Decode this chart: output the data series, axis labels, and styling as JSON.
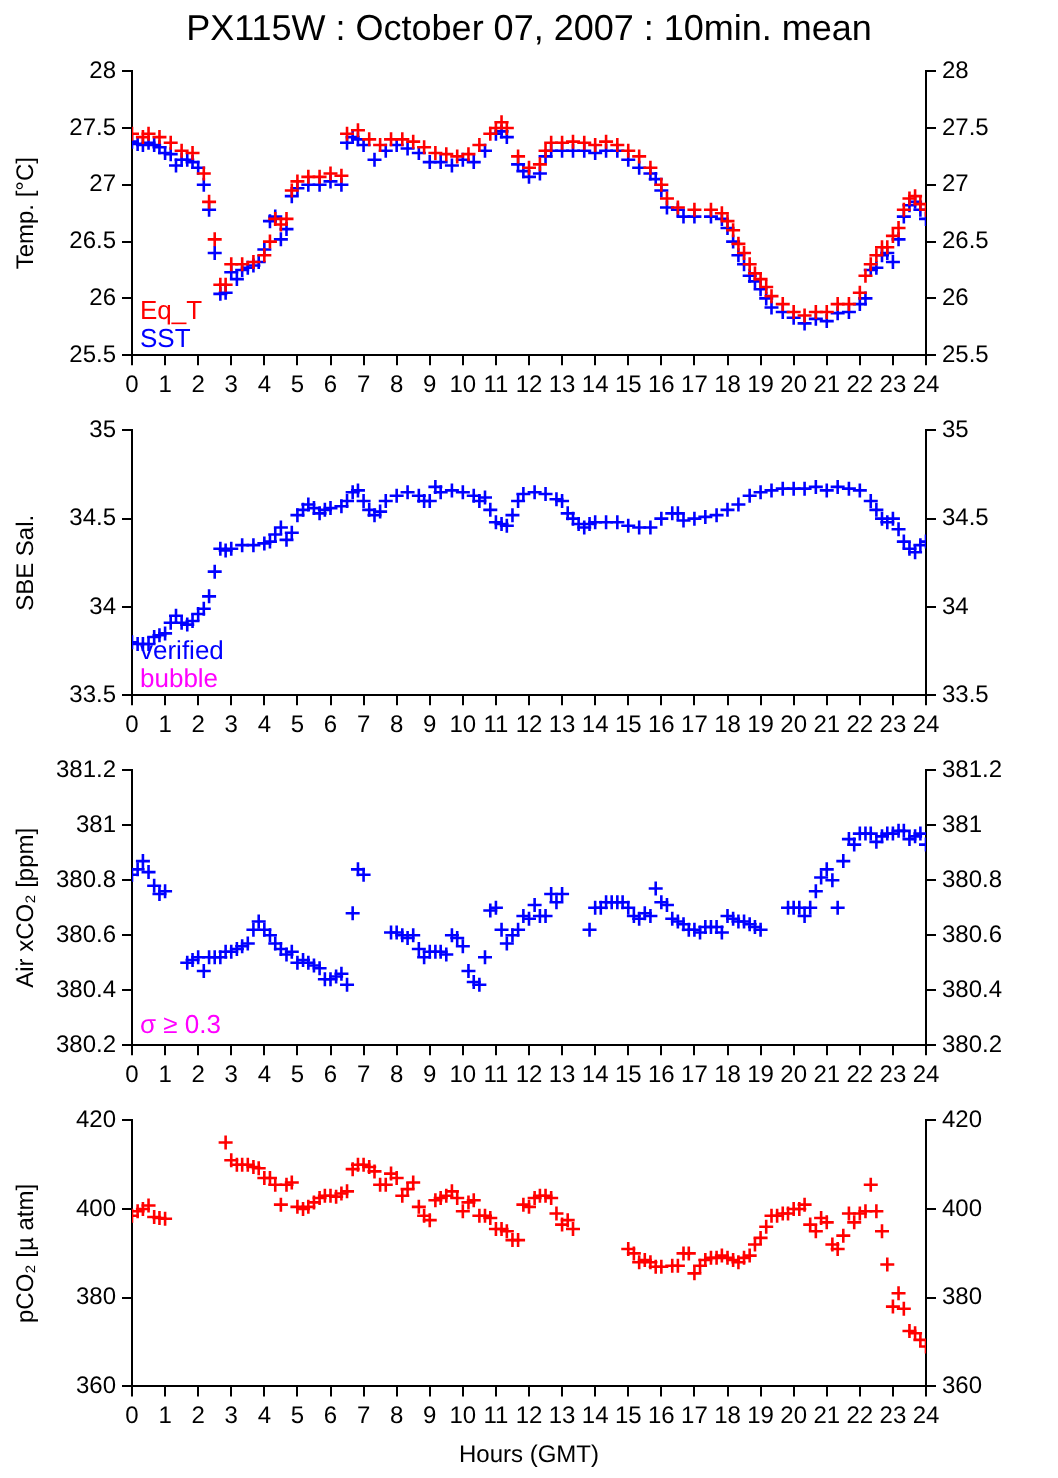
{
  "chart_data": [
    {
      "type": "scatter",
      "title": "PX115W : October 07, 2007 : 10min. mean",
      "ylabel": "Temp. [°C]",
      "xlim": [
        0,
        24
      ],
      "xticks": [
        0,
        1,
        2,
        3,
        4,
        5,
        6,
        7,
        8,
        9,
        10,
        11,
        12,
        13,
        14,
        15,
        16,
        17,
        18,
        19,
        20,
        21,
        22,
        23,
        24
      ],
      "ylim": [
        25.5,
        28
      ],
      "yticks": [
        25.5,
        26,
        26.5,
        27,
        27.5,
        28
      ],
      "y2lim": [
        25.5,
        28
      ],
      "y2ticks": [
        25.5,
        26,
        26.5,
        27,
        27.5,
        28
      ],
      "marker": "cross",
      "legend": "bottom left",
      "series": [
        {
          "name": "Eq_T",
          "color": "#ff0000",
          "x": [
            0,
            0.33,
            0.5,
            0.83,
            1.17,
            1.5,
            1.83,
            2.17,
            2.33,
            2.5,
            2.67,
            2.83,
            3,
            3.33,
            3.67,
            4,
            4.17,
            4.33,
            4.5,
            4.67,
            4.83,
            5,
            5.33,
            5.67,
            6,
            6.33,
            6.5,
            6.83,
            7.17,
            7.5,
            7.83,
            8.17,
            8.5,
            8.83,
            9.17,
            9.5,
            9.83,
            10.17,
            10.5,
            10.83,
            11,
            11.17,
            11.33,
            11.67,
            12,
            12.33,
            12.5,
            12.67,
            13,
            13.33,
            13.67,
            14,
            14.33,
            14.67,
            15,
            15.33,
            15.67,
            16,
            16.17,
            16.5,
            17,
            17.5,
            17.83,
            18,
            18.17,
            18.33,
            18.5,
            18.67,
            18.83,
            19,
            19.17,
            19.33,
            19.67,
            20,
            20.33,
            20.67,
            21,
            21.33,
            21.67,
            22,
            22.17,
            22.33,
            22.5,
            22.67,
            22.83,
            23,
            23.17,
            23.33,
            23.5,
            23.67,
            23.83,
            24
          ],
          "values": [
            27.45,
            27.42,
            27.45,
            27.42,
            27.37,
            27.3,
            27.28,
            27.1,
            26.85,
            26.52,
            26.12,
            26.12,
            26.3,
            26.3,
            26.32,
            26.38,
            26.5,
            26.7,
            26.65,
            26.7,
            26.95,
            27.03,
            27.07,
            27.07,
            27.1,
            27.08,
            27.45,
            27.48,
            27.4,
            27.35,
            27.4,
            27.4,
            27.38,
            27.33,
            27.28,
            27.27,
            27.25,
            27.27,
            27.35,
            27.45,
            27.5,
            27.55,
            27.5,
            27.25,
            27.15,
            27.18,
            27.3,
            27.37,
            27.37,
            27.38,
            27.37,
            27.35,
            27.38,
            27.35,
            27.3,
            27.25,
            27.15,
            27,
            26.88,
            26.8,
            26.78,
            26.78,
            26.75,
            26.68,
            26.6,
            26.48,
            26.4,
            26.3,
            26.22,
            26.17,
            26.1,
            26.02,
            25.95,
            25.88,
            25.85,
            25.88,
            25.88,
            25.95,
            25.95,
            26.05,
            26.2,
            26.3,
            26.38,
            26.45,
            26.45,
            26.55,
            26.62,
            26.78,
            26.88,
            26.9,
            26.83,
            26.78
          ]
        },
        {
          "name": "SST",
          "color": "#0000ff",
          "x": [
            0,
            0.17,
            0.33,
            0.5,
            0.67,
            0.83,
            1,
            1.17,
            1.33,
            1.5,
            1.67,
            1.83,
            2,
            2.17,
            2.33,
            2.5,
            2.67,
            2.83,
            3,
            3.17,
            3.33,
            3.5,
            3.67,
            3.83,
            4,
            4.17,
            4.33,
            4.5,
            4.67,
            4.83,
            5,
            5.33,
            5.67,
            6,
            6.33,
            6.5,
            6.67,
            6.83,
            7,
            7.33,
            7.67,
            8,
            8.33,
            8.67,
            9,
            9.33,
            9.67,
            10,
            10.33,
            10.67,
            11,
            11.17,
            11.33,
            11.67,
            11.83,
            12,
            12.33,
            12.5,
            12.67,
            13,
            13.33,
            13.67,
            14,
            14.33,
            14.67,
            15,
            15.33,
            15.67,
            15.83,
            16,
            16.17,
            16.5,
            16.67,
            17,
            17.5,
            17.83,
            18,
            18.17,
            18.33,
            18.5,
            18.67,
            18.83,
            19,
            19.17,
            19.33,
            19.67,
            20,
            20.33,
            20.67,
            21,
            21.33,
            21.67,
            22,
            22.17,
            22.33,
            22.5,
            22.67,
            22.83,
            23,
            23.17,
            23.33,
            23.5,
            23.67,
            23.83,
            24
          ],
          "values": [
            27.38,
            27.36,
            27.35,
            27.37,
            27.35,
            27.33,
            27.28,
            27.27,
            27.17,
            27.22,
            27.22,
            27.2,
            27.15,
            27,
            26.78,
            26.4,
            26.04,
            26.05,
            26.23,
            26.17,
            26.25,
            26.27,
            26.29,
            26.32,
            26.43,
            26.68,
            26.72,
            26.52,
            26.61,
            26.9,
            26.97,
            27,
            27,
            27.03,
            27,
            27.37,
            27.42,
            27.4,
            27.35,
            27.22,
            27.3,
            27.35,
            27.32,
            27.28,
            27.2,
            27.2,
            27.17,
            27.22,
            27.2,
            27.3,
            27.45,
            27.47,
            27.42,
            27.18,
            27.12,
            27.07,
            27.1,
            27.25,
            27.3,
            27.3,
            27.3,
            27.3,
            27.28,
            27.3,
            27.3,
            27.22,
            27.15,
            27.1,
            27.05,
            26.95,
            26.8,
            26.78,
            26.72,
            26.72,
            26.72,
            26.7,
            26.62,
            26.5,
            26.38,
            26.3,
            26.2,
            26.15,
            26.08,
            26,
            25.92,
            25.88,
            25.83,
            25.78,
            25.82,
            25.8,
            25.87,
            25.88,
            25.95,
            26,
            26.25,
            26.27,
            26.38,
            26.4,
            26.32,
            26.52,
            26.72,
            26.82,
            26.85,
            26.78,
            26.7
          ]
        }
      ]
    },
    {
      "type": "scatter",
      "ylabel": "SBE Sal.",
      "xlim": [
        0,
        24
      ],
      "xticks": [
        0,
        1,
        2,
        3,
        4,
        5,
        6,
        7,
        8,
        9,
        10,
        11,
        12,
        13,
        14,
        15,
        16,
        17,
        18,
        19,
        20,
        21,
        22,
        23,
        24
      ],
      "ylim": [
        33.5,
        35
      ],
      "yticks": [
        33.5,
        34,
        34.5,
        35
      ],
      "y2lim": [
        33.5,
        35
      ],
      "y2ticks": [
        33.5,
        34,
        34.5,
        35
      ],
      "marker": "cross",
      "legend": "bottom left",
      "series": [
        {
          "name": "verified",
          "color": "#0000ff",
          "x": [
            0,
            0.17,
            0.33,
            0.5,
            0.67,
            0.83,
            1,
            1.17,
            1.33,
            1.5,
            1.67,
            1.83,
            2,
            2.17,
            2.33,
            2.5,
            2.67,
            2.83,
            3,
            3.33,
            3.67,
            4,
            4.17,
            4.33,
            4.5,
            4.67,
            4.83,
            5,
            5.17,
            5.33,
            5.5,
            5.67,
            5.83,
            6,
            6.33,
            6.5,
            6.67,
            6.83,
            7,
            7.17,
            7.33,
            7.5,
            7.67,
            8,
            8.33,
            8.67,
            8.83,
            9,
            9.17,
            9.33,
            9.67,
            10,
            10.33,
            10.5,
            10.67,
            10.83,
            11,
            11.17,
            11.33,
            11.5,
            11.67,
            11.83,
            12.17,
            12.5,
            12.83,
            13,
            13.17,
            13.33,
            13.5,
            13.67,
            13.83,
            14,
            14.33,
            14.67,
            15,
            15.33,
            15.67,
            16,
            16.33,
            16.5,
            16.67,
            17,
            17.33,
            17.67,
            18,
            18.33,
            18.67,
            19,
            19.33,
            19.67,
            20,
            20.33,
            20.67,
            21,
            21.33,
            21.67,
            22,
            22.33,
            22.5,
            22.67,
            22.83,
            23,
            23.17,
            23.33,
            23.5,
            23.67,
            23.83,
            24
          ],
          "values": [
            33.8,
            33.79,
            33.79,
            33.79,
            33.83,
            33.84,
            33.85,
            33.91,
            33.95,
            33.91,
            33.9,
            33.92,
            33.96,
            33.99,
            34.06,
            34.2,
            34.33,
            34.32,
            34.33,
            34.35,
            34.35,
            34.36,
            34.37,
            34.41,
            34.45,
            34.38,
            34.42,
            34.52,
            34.55,
            34.58,
            34.56,
            34.53,
            34.55,
            34.56,
            34.57,
            34.6,
            34.65,
            34.66,
            34.6,
            34.55,
            34.52,
            34.54,
            34.6,
            34.63,
            34.65,
            34.63,
            34.6,
            34.6,
            34.68,
            34.65,
            34.66,
            34.65,
            34.63,
            34.6,
            34.62,
            34.55,
            34.48,
            34.47,
            34.46,
            34.52,
            34.6,
            34.64,
            34.65,
            34.64,
            34.61,
            34.6,
            34.53,
            34.5,
            34.47,
            34.45,
            34.47,
            34.48,
            34.48,
            34.48,
            34.46,
            34.45,
            34.45,
            34.5,
            34.53,
            34.53,
            34.49,
            34.5,
            34.51,
            34.52,
            34.55,
            34.58,
            34.63,
            34.65,
            34.66,
            34.67,
            34.67,
            34.67,
            34.68,
            34.66,
            34.68,
            34.67,
            34.66,
            34.6,
            34.55,
            34.5,
            34.48,
            34.5,
            34.44,
            34.37,
            34.33,
            34.31,
            34.35,
            34.37
          ]
        },
        {
          "name": "bubble",
          "color": "#ff00ff"
        }
      ]
    },
    {
      "type": "scatter",
      "ylabel": "Air xCO₂ [ppm]",
      "xlim": [
        0,
        24
      ],
      "xticks": [
        0,
        1,
        2,
        3,
        4,
        5,
        6,
        7,
        8,
        9,
        10,
        11,
        12,
        13,
        14,
        15,
        16,
        17,
        18,
        19,
        20,
        21,
        22,
        23,
        24
      ],
      "ylim": [
        380.2,
        381.2
      ],
      "yticks": [
        380.2,
        380.4,
        380.6,
        380.8,
        381,
        381.2
      ],
      "y2lim": [
        380.2,
        381.2
      ],
      "y2ticks": [
        380.2,
        380.4,
        380.6,
        380.8,
        381,
        381.2
      ],
      "marker": "cross",
      "annotations": [
        "σ ≥ 0.3"
      ],
      "series": [
        {
          "color": "#0000ff",
          "x": [
            0,
            0.17,
            0.33,
            0.5,
            0.67,
            0.83,
            1,
            1.67,
            1.83,
            2,
            2.17,
            2.33,
            2.5,
            2.67,
            2.83,
            3,
            3.17,
            3.33,
            3.5,
            3.67,
            3.83,
            4,
            4.17,
            4.33,
            4.5,
            4.67,
            4.83,
            5,
            5.17,
            5.33,
            5.5,
            5.67,
            5.83,
            6,
            6.17,
            6.33,
            6.5,
            6.67,
            6.83,
            7,
            7.83,
            8,
            8.17,
            8.33,
            8.5,
            8.67,
            8.83,
            9,
            9.17,
            9.33,
            9.5,
            9.67,
            9.83,
            10,
            10.17,
            10.33,
            10.5,
            10.67,
            10.83,
            11,
            11.17,
            11.33,
            11.5,
            11.67,
            11.83,
            12,
            12.17,
            12.33,
            12.5,
            12.67,
            12.83,
            13,
            13.83,
            14,
            14.17,
            14.33,
            14.5,
            14.67,
            14.83,
            15,
            15.17,
            15.33,
            15.5,
            15.67,
            15.83,
            16,
            16.17,
            16.33,
            16.5,
            16.67,
            16.83,
            17,
            17.17,
            17.33,
            17.5,
            17.67,
            17.83,
            18,
            18.17,
            18.33,
            18.5,
            18.67,
            18.83,
            19,
            19.83,
            20,
            20.17,
            20.33,
            20.5,
            20.67,
            20.83,
            21,
            21.17,
            21.33,
            21.5,
            21.67,
            21.83,
            22,
            22.17,
            22.33,
            22.5,
            22.67,
            22.83,
            23,
            23.17,
            23.33,
            23.5,
            23.67,
            23.83,
            24
          ],
          "values": [
            380.82,
            380.84,
            380.87,
            380.83,
            380.78,
            380.75,
            380.76,
            380.5,
            380.51,
            380.52,
            380.47,
            380.52,
            380.52,
            380.52,
            380.54,
            380.54,
            380.55,
            380.56,
            380.57,
            380.62,
            380.65,
            380.62,
            380.6,
            380.57,
            380.55,
            380.53,
            380.54,
            380.5,
            380.51,
            380.5,
            380.49,
            380.48,
            380.44,
            380.44,
            380.45,
            380.46,
            380.42,
            380.68,
            380.84,
            380.82,
            380.61,
            380.61,
            380.6,
            380.59,
            380.6,
            380.55,
            380.52,
            380.54,
            380.54,
            380.54,
            380.53,
            380.6,
            380.59,
            380.56,
            380.47,
            380.43,
            380.42,
            380.52,
            380.69,
            380.7,
            380.62,
            380.57,
            380.6,
            380.62,
            380.67,
            380.66,
            380.71,
            380.67,
            380.67,
            380.75,
            380.72,
            380.75,
            380.62,
            380.7,
            380.7,
            380.72,
            380.72,
            380.72,
            380.72,
            380.7,
            380.67,
            380.66,
            380.68,
            380.67,
            380.77,
            380.72,
            380.71,
            380.66,
            380.65,
            380.64,
            380.62,
            380.62,
            380.61,
            380.63,
            380.63,
            380.63,
            380.61,
            380.67,
            380.66,
            380.65,
            380.65,
            380.64,
            380.63,
            380.62,
            380.7,
            380.7,
            380.7,
            380.67,
            380.7,
            380.76,
            380.81,
            380.84,
            380.8,
            380.7,
            380.87,
            380.95,
            380.93,
            380.97,
            380.97,
            380.97,
            380.94,
            380.96,
            380.97,
            380.97,
            380.98,
            380.98,
            380.95,
            380.96,
            380.97,
            380.93
          ]
        }
      ]
    },
    {
      "type": "scatter",
      "ylabel": "pCO₂ [µ atm]",
      "xlabel": "Hours (GMT)",
      "xlim": [
        0,
        24
      ],
      "xticks": [
        0,
        1,
        2,
        3,
        4,
        5,
        6,
        7,
        8,
        9,
        10,
        11,
        12,
        13,
        14,
        15,
        16,
        17,
        18,
        19,
        20,
        21,
        22,
        23,
        24
      ],
      "ylim": [
        360,
        420
      ],
      "yticks": [
        360,
        380,
        400,
        420
      ],
      "y2lim": [
        360,
        420
      ],
      "y2ticks": [
        360,
        380,
        400,
        420
      ],
      "marker": "cross",
      "series": [
        {
          "color": "#ff0000",
          "x": [
            0,
            0.17,
            0.33,
            0.5,
            0.67,
            0.83,
            1,
            2.83,
            3,
            3.17,
            3.33,
            3.5,
            3.67,
            3.83,
            4,
            4.17,
            4.33,
            4.5,
            4.67,
            4.83,
            5,
            5.17,
            5.33,
            5.5,
            5.67,
            5.83,
            6,
            6.17,
            6.33,
            6.5,
            6.67,
            6.83,
            7,
            7.17,
            7.33,
            7.5,
            7.67,
            7.83,
            8,
            8.17,
            8.33,
            8.5,
            8.67,
            8.83,
            9,
            9.17,
            9.33,
            9.5,
            9.67,
            9.83,
            10,
            10.17,
            10.33,
            10.5,
            10.67,
            10.83,
            11,
            11.17,
            11.33,
            11.5,
            11.67,
            11.83,
            12,
            12.17,
            12.33,
            12.5,
            12.67,
            12.83,
            13,
            13.17,
            13.33,
            15,
            15.17,
            15.33,
            15.5,
            15.67,
            15.83,
            16,
            16.33,
            16.5,
            16.67,
            16.83,
            17,
            17.17,
            17.33,
            17.5,
            17.67,
            17.83,
            18,
            18.17,
            18.33,
            18.5,
            18.67,
            18.83,
            19,
            19.17,
            19.33,
            19.5,
            19.67,
            19.83,
            20,
            20.17,
            20.33,
            20.5,
            20.67,
            20.83,
            21,
            21.17,
            21.33,
            21.5,
            21.67,
            21.83,
            22,
            22.17,
            22.33,
            22.5,
            22.67,
            22.83,
            23,
            23.17,
            23.33,
            23.5,
            23.67,
            23.83,
            24
          ],
          "values": [
            398.5,
            399.5,
            400,
            400.8,
            398.2,
            398,
            397.8,
            415,
            411,
            410,
            410,
            410,
            409.5,
            409.2,
            407,
            407,
            405.5,
            401,
            405.5,
            406,
            400.5,
            400,
            400.5,
            401.5,
            402.5,
            403,
            403,
            402.8,
            403.5,
            404,
            409,
            410,
            410,
            409.5,
            408.5,
            405.5,
            405.5,
            408,
            407,
            403,
            404.5,
            406,
            400.5,
            398.5,
            397.5,
            402,
            402.5,
            403,
            404,
            402.5,
            399.5,
            401.5,
            402,
            398.5,
            398.5,
            398,
            395.5,
            395.5,
            395,
            393,
            393,
            401,
            400.5,
            402.5,
            403,
            403,
            402.5,
            399,
            396.5,
            397.5,
            395.5,
            391,
            390,
            388,
            388.5,
            388,
            387,
            387,
            387.2,
            387.2,
            390,
            390,
            385.5,
            387.2,
            388.5,
            389,
            389,
            389.5,
            389,
            388.5,
            388,
            389,
            389.5,
            392,
            393.5,
            396,
            398.5,
            398.5,
            399,
            399,
            400,
            400,
            401,
            396.5,
            395,
            398,
            397,
            392,
            391,
            394,
            399,
            397,
            399,
            399.5,
            405.5,
            399.5,
            395,
            387.5,
            378,
            381,
            377.5,
            372.5,
            372,
            370.5,
            369
          ]
        }
      ]
    }
  ]
}
